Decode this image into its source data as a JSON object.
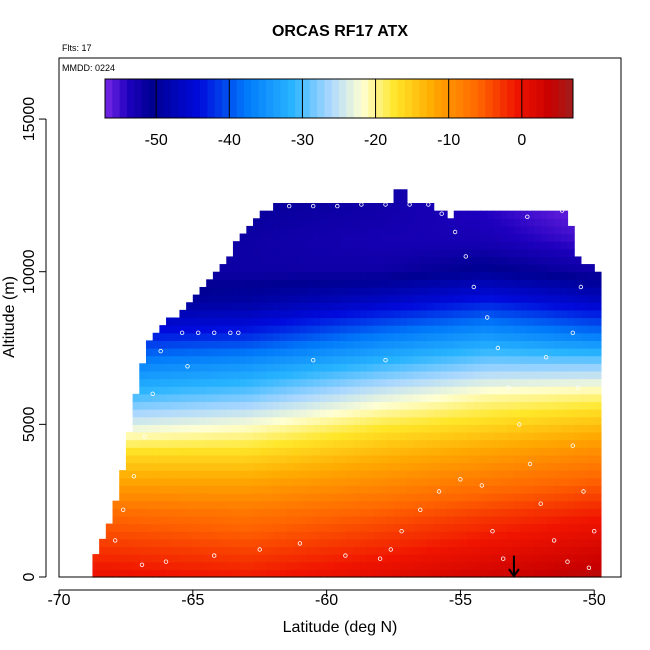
{
  "chart_data": {
    "type": "heatmap",
    "title": "ORCAS RF17 ATX",
    "flights_label": "Flts: 17",
    "date_label": "MMDD: 0224",
    "xlabel": "Latitude (deg N)",
    "ylabel": "Altitude (m)",
    "xlim": [
      -70,
      -49
    ],
    "ylim": [
      0,
      17000
    ],
    "x_ticks": [
      -70,
      -65,
      -60,
      -55,
      -50
    ],
    "y_ticks": [
      0,
      5000,
      10000,
      15000
    ],
    "colorbar": {
      "range": [
        -57,
        7
      ],
      "ticks": [
        -50,
        -40,
        -30,
        -20,
        -10,
        0
      ]
    },
    "coverage": {
      "lat_step": 0.25,
      "alt_step": 250,
      "lat_start": -68.75,
      "lat_end": -49.75,
      "max_altitude_profile": [
        [
          -68.75,
          500
        ],
        [
          -68.0,
          2000
        ],
        [
          -67.5,
          4000
        ],
        [
          -67.0,
          6500
        ],
        [
          -66.5,
          8000
        ],
        [
          -65.0,
          9000
        ],
        [
          -64.0,
          10000
        ],
        [
          -63.0,
          11500
        ],
        [
          -62.0,
          12200
        ],
        [
          -56.0,
          12200
        ],
        [
          -55.5,
          11800
        ],
        [
          -54.5,
          12000
        ],
        [
          -51.0,
          12000
        ],
        [
          -50.6,
          10500
        ],
        [
          -49.75,
          10000
        ]
      ],
      "upper_right_tail": [
        [
          -57.25,
          12200,
          12500
        ]
      ]
    },
    "temperature_profiles": [
      {
        "lat": -68,
        "levels": [
          [
            0,
            0
          ],
          [
            1000,
            -3
          ],
          [
            2000,
            -6
          ],
          [
            3000,
            -11
          ],
          [
            4000,
            -16
          ],
          [
            5000,
            -24
          ],
          [
            6000,
            -31
          ],
          [
            7000,
            -37
          ],
          [
            8000,
            -44
          ],
          [
            9000,
            -50
          ],
          [
            10000,
            -52
          ],
          [
            12000,
            -52
          ]
        ]
      },
      {
        "lat": -63,
        "levels": [
          [
            0,
            -1
          ],
          [
            1000,
            -4
          ],
          [
            2000,
            -7
          ],
          [
            3000,
            -11
          ],
          [
            4000,
            -16
          ],
          [
            5000,
            -22
          ],
          [
            6000,
            -29
          ],
          [
            7000,
            -35
          ],
          [
            8000,
            -43
          ],
          [
            9000,
            -49
          ],
          [
            10000,
            -52
          ],
          [
            11000,
            -52
          ],
          [
            12500,
            -51
          ]
        ]
      },
      {
        "lat": -58,
        "levels": [
          [
            0,
            1
          ],
          [
            1000,
            -2
          ],
          [
            2000,
            -5
          ],
          [
            3000,
            -9
          ],
          [
            4000,
            -13
          ],
          [
            5000,
            -18
          ],
          [
            6000,
            -24
          ],
          [
            7000,
            -31
          ],
          [
            8000,
            -38
          ],
          [
            9000,
            -46
          ],
          [
            10000,
            -52
          ],
          [
            11000,
            -53
          ],
          [
            12500,
            -52
          ]
        ]
      },
      {
        "lat": -54,
        "levels": [
          [
            0,
            3
          ],
          [
            1000,
            0
          ],
          [
            2000,
            -3
          ],
          [
            3000,
            -7
          ],
          [
            4000,
            -11
          ],
          [
            5000,
            -16
          ],
          [
            6000,
            -21
          ],
          [
            7000,
            -28
          ],
          [
            8000,
            -35
          ],
          [
            9000,
            -43
          ],
          [
            10000,
            -50
          ],
          [
            11000,
            -53
          ],
          [
            12000,
            -54
          ]
        ]
      },
      {
        "lat": -50,
        "levels": [
          [
            0,
            5
          ],
          [
            1000,
            2
          ],
          [
            2000,
            -1
          ],
          [
            3000,
            -5
          ],
          [
            4000,
            -9
          ],
          [
            5000,
            -14
          ],
          [
            6000,
            -20
          ],
          [
            7000,
            -28
          ],
          [
            8000,
            -38
          ],
          [
            9000,
            -46
          ],
          [
            10000,
            -52
          ],
          [
            11000,
            -55
          ],
          [
            12000,
            -57
          ]
        ]
      }
    ],
    "arrow_marker": {
      "lat": -53,
      "alt_top": 700,
      "alt_bottom": 0
    },
    "flight_track_points": [
      [
        -67.9,
        1200
      ],
      [
        -67.6,
        2200
      ],
      [
        -67.2,
        3300
      ],
      [
        -66.8,
        4600
      ],
      [
        -66.5,
        6000
      ],
      [
        -66.2,
        7400
      ],
      [
        -65.4,
        8000
      ],
      [
        -64.8,
        8000
      ],
      [
        -64.2,
        8000
      ],
      [
        -63.6,
        8000
      ],
      [
        -63.3,
        8000
      ],
      [
        -62.2,
        12150
      ],
      [
        -61.4,
        12150
      ],
      [
        -60.5,
        12150
      ],
      [
        -59.6,
        12150
      ],
      [
        -58.7,
        12200
      ],
      [
        -57.8,
        12200
      ],
      [
        -56.9,
        12200
      ],
      [
        -56.2,
        12200
      ],
      [
        -55.7,
        11900
      ],
      [
        -55.2,
        11300
      ],
      [
        -54.8,
        10500
      ],
      [
        -54.5,
        9500
      ],
      [
        -54.0,
        8500
      ],
      [
        -53.6,
        7500
      ],
      [
        -53.2,
        6200
      ],
      [
        -52.8,
        5000
      ],
      [
        -52.4,
        3700
      ],
      [
        -52.0,
        2400
      ],
      [
        -51.5,
        1200
      ],
      [
        -51.0,
        500
      ],
      [
        -66.9,
        400
      ],
      [
        -66.0,
        500
      ],
      [
        -64.2,
        700
      ],
      [
        -62.5,
        900
      ],
      [
        -61.0,
        1100
      ],
      [
        -59.3,
        700
      ],
      [
        -58.0,
        600
      ],
      [
        -57.6,
        900
      ],
      [
        -57.2,
        1500
      ],
      [
        -56.5,
        2200
      ],
      [
        -55.8,
        2800
      ],
      [
        -55.0,
        3200
      ],
      [
        -54.2,
        3000
      ],
      [
        -53.8,
        1500
      ],
      [
        -53.4,
        600
      ],
      [
        -50.2,
        300
      ],
      [
        -50.0,
        1500
      ],
      [
        -50.4,
        2800
      ],
      [
        -50.8,
        4300
      ],
      [
        -50.6,
        6200
      ],
      [
        -65.2,
        6900
      ],
      [
        -60.5,
        7100
      ],
      [
        -57.8,
        7100
      ],
      [
        -51.8,
        7200
      ],
      [
        -50.8,
        8000
      ],
      [
        -50.5,
        9500
      ],
      [
        -51.2,
        12000
      ],
      [
        -52.5,
        11800
      ]
    ]
  }
}
